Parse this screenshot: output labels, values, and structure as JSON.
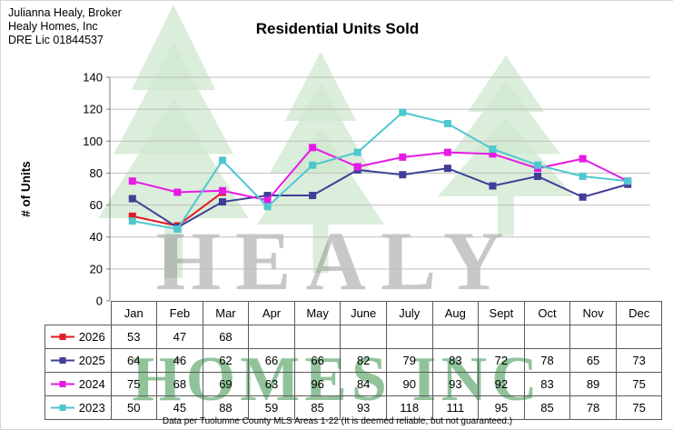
{
  "header": {
    "line1": "Julianna Healy, Broker",
    "line2": "Healy Homes, Inc",
    "line3": "DRE Lic 01844537"
  },
  "chart_data": {
    "type": "line",
    "title": "Residential Units Sold",
    "ylabel": "# of Units",
    "ylim": [
      0,
      140
    ],
    "ytick_step": 20,
    "grid": true,
    "legend_position": "table-left",
    "categories": [
      "Jan",
      "Feb",
      "Mar",
      "Apr",
      "May",
      "June",
      "July",
      "Aug",
      "Sept",
      "Oct",
      "Nov",
      "Dec"
    ],
    "series": [
      {
        "name": "2026",
        "color": "#e31b23",
        "marker": "square",
        "values": [
          53,
          47,
          68,
          null,
          null,
          null,
          null,
          null,
          null,
          null,
          null,
          null
        ]
      },
      {
        "name": "2025",
        "color": "#3f3f96",
        "marker": "square",
        "values": [
          64,
          46,
          62,
          66,
          66,
          82,
          79,
          83,
          72,
          78,
          65,
          73
        ]
      },
      {
        "name": "2024",
        "color": "#e61ae6",
        "marker": "square",
        "values": [
          75,
          68,
          69,
          63,
          96,
          84,
          90,
          93,
          92,
          83,
          89,
          75
        ]
      },
      {
        "name": "2023",
        "color": "#4ec7cf",
        "marker": "square",
        "values": [
          50,
          45,
          88,
          59,
          85,
          93,
          118,
          111,
          95,
          85,
          78,
          75
        ]
      }
    ]
  },
  "watermark": {
    "line1": "HEALY",
    "line2": "HOMES INC",
    "tree_color": "#cfe7cf"
  },
  "footer": {
    "text": "Data per Tuolumne County MLS Areas 1-22 (It is deemed reliable, but not guaranteed.)"
  }
}
